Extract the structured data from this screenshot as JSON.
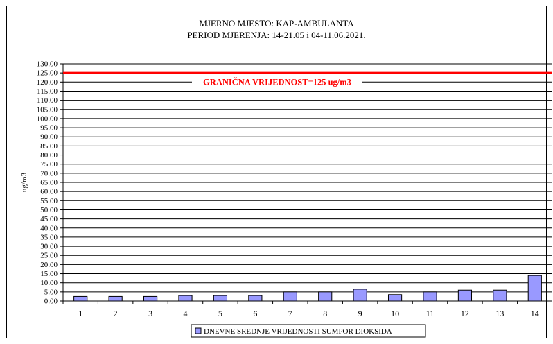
{
  "chart_data": {
    "type": "bar",
    "title": "MJERNO MJESTO: KAP-AMBULANTA",
    "subtitle": "PERIOD MJERENJA: 14-21.05 i 04-11.06.2021.",
    "xlabel": "",
    "ylabel": "ug/m3",
    "ylim": [
      0,
      130
    ],
    "yticks": [
      "0.00",
      "5.00",
      "10.00",
      "15.00",
      "20.00",
      "25.00",
      "30.00",
      "35.00",
      "40.00",
      "45.00",
      "50.00",
      "55.00",
      "60.00",
      "65.00",
      "70.00",
      "75.00",
      "80.00",
      "85.00",
      "90.00",
      "95.00",
      "100.00",
      "105.00",
      "110.00",
      "115.00",
      "120.00",
      "125.00",
      "130.00"
    ],
    "categories": [
      "1",
      "2",
      "3",
      "4",
      "5",
      "6",
      "7",
      "8",
      "9",
      "10",
      "11",
      "12",
      "13",
      "14"
    ],
    "series": [
      {
        "name": "DNEVNE SREDNJE VRIJEDNOSTI SUMPOR DIOKSIDA",
        "values": [
          2.5,
          2.5,
          2.5,
          3.0,
          3.0,
          3.0,
          5.0,
          5.0,
          6.5,
          3.5,
          5.0,
          6.0,
          6.0,
          14.0
        ]
      }
    ],
    "limit": {
      "value": 125,
      "label": "GRANIČNA VRIJEDNOST=125 ug/m3",
      "color": "#ff0000"
    },
    "bar_color": "#9999ff",
    "grid": true,
    "legend_position": "bottom"
  }
}
